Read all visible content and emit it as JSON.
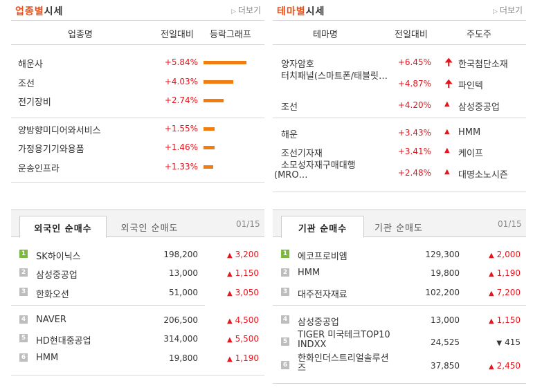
{
  "industry": {
    "title_accent": "업종별",
    "title_rest": "시세",
    "more": "더보기",
    "headers": [
      "업종명",
      "전일대비",
      "등락그래프"
    ],
    "rows": [
      {
        "name": "해운사",
        "change": "+5.84%",
        "pct": 5.84
      },
      {
        "name": "조선",
        "change": "+4.03%",
        "pct": 4.03
      },
      {
        "name": "전기장비",
        "change": "+2.74%",
        "pct": 2.74
      },
      {
        "name": "양방향미디어와서비스",
        "change": "+1.55%",
        "pct": 1.55
      },
      {
        "name": "가정용기기와용품",
        "change": "+1.46%",
        "pct": 1.46
      },
      {
        "name": "운송인프라",
        "change": "+1.33%",
        "pct": 1.33
      }
    ]
  },
  "theme": {
    "title_accent": "테마별",
    "title_rest": "시세",
    "more": "더보기",
    "headers": [
      "테마명",
      "전일대비",
      "주도주"
    ],
    "rows": [
      {
        "name": "양자암호",
        "change": "+6.45%",
        "lead": "한국첨단소재",
        "icon": "up-arrow-icon"
      },
      {
        "name": "터치패널(스마트폰/태블릿…",
        "change": "+4.87%",
        "lead": "파인텍",
        "icon": "up-arrow-icon"
      },
      {
        "name": "조선",
        "change": "+4.20%",
        "lead": "삼성중공업",
        "icon": "up-triangle-icon"
      },
      {
        "name": "해운",
        "change": "+3.43%",
        "lead": "HMM",
        "icon": "up-triangle-icon"
      },
      {
        "name": "조선기자재",
        "change": "+3.41%",
        "lead": "케이프",
        "icon": "up-triangle-icon"
      },
      {
        "name": "소모성자재구매대행(MRO…",
        "change": "+2.48%",
        "lead": "대명소노시즌",
        "icon": "up-triangle-icon"
      }
    ]
  },
  "foreign": {
    "tab_active": "외국인 순매수",
    "tab_other": "외국인 순매도",
    "date": "01/15",
    "rows": [
      {
        "rank": "1",
        "name": "SK하이닉스",
        "price": "198,200",
        "amount": "3,200",
        "dir": "up"
      },
      {
        "rank": "2",
        "name": "삼성중공업",
        "price": "13,000",
        "amount": "1,150",
        "dir": "up"
      },
      {
        "rank": "3",
        "name": "한화오션",
        "price": "51,000",
        "amount": "3,050",
        "dir": "up"
      },
      {
        "rank": "4",
        "name": "NAVER",
        "price": "206,500",
        "amount": "4,500",
        "dir": "up"
      },
      {
        "rank": "5",
        "name": "HD현대중공업",
        "price": "314,000",
        "amount": "5,500",
        "dir": "up"
      },
      {
        "rank": "6",
        "name": "HMM",
        "price": "19,800",
        "amount": "1,190",
        "dir": "up"
      }
    ]
  },
  "institution": {
    "tab_active": "기관 순매수",
    "tab_other": "기관 순매도",
    "date": "01/15",
    "rows": [
      {
        "rank": "1",
        "name": "에코프로비엠",
        "price": "129,300",
        "amount": "2,000",
        "dir": "up"
      },
      {
        "rank": "2",
        "name": "HMM",
        "price": "19,800",
        "amount": "1,190",
        "dir": "up"
      },
      {
        "rank": "3",
        "name": "대주전자재료",
        "price": "102,200",
        "amount": "7,200",
        "dir": "up"
      },
      {
        "rank": "4",
        "name": "삼성중공업",
        "price": "13,000",
        "amount": "1,150",
        "dir": "up"
      },
      {
        "rank": "5",
        "name": "TIGER 미국테크TOP10 INDXX",
        "price": "24,525",
        "amount": "415",
        "dir": "down"
      },
      {
        "rank": "6",
        "name": "한화인더스트리얼솔루션즈",
        "price": "37,850",
        "amount": "2,450",
        "dir": "up"
      }
    ]
  },
  "icons": {
    "up_arrow": "🠉",
    "triangle_up": "▲",
    "triangle_down": "▼",
    "more": "▷"
  }
}
